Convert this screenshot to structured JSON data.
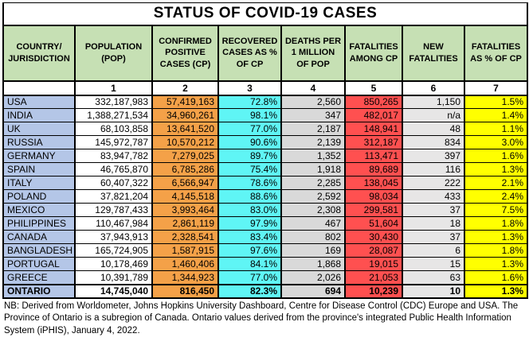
{
  "chart_data": {
    "type": "table",
    "title": "STATUS OF COVID-19 CASES",
    "columns": [
      "COUNTRY/ JURISDICTION",
      "POPULATION (POP)",
      "CONFIRMED POSITIVE CASES (CP)",
      "RECOVERED CASES AS % OF CP",
      "DEATHS PER 1 MILLION OF POP",
      "FATALITIES AMONG CP",
      "NEW FATALITIES",
      "FATALITIES AS % OF CP"
    ],
    "column_numbers": [
      "",
      "1",
      "2",
      "3",
      "4",
      "5",
      "6",
      "7"
    ],
    "rows": [
      [
        "USA",
        "332,187,983",
        "57,419,163",
        "72.8%",
        "2,560",
        "850,265",
        "1,150",
        "1.5%"
      ],
      [
        "INDIA",
        "1,388,271,534",
        "34,960,261",
        "98.1%",
        "347",
        "482,017",
        "n/a",
        "1.4%"
      ],
      [
        "UK",
        "68,103,858",
        "13,641,520",
        "77.0%",
        "2,187",
        "148,941",
        "48",
        "1.1%"
      ],
      [
        "RUSSIA",
        "145,972,787",
        "10,570,212",
        "90.6%",
        "2,139",
        "312,187",
        "834",
        "3.0%"
      ],
      [
        "GERMANY",
        "83,947,782",
        "7,279,025",
        "89.7%",
        "1,352",
        "113,471",
        "397",
        "1.6%"
      ],
      [
        "SPAIN",
        "46,765,870",
        "6,785,286",
        "75.4%",
        "1,918",
        "89,689",
        "116",
        "1.3%"
      ],
      [
        "ITALY",
        "60,407,322",
        "6,566,947",
        "78.6%",
        "2,285",
        "138,045",
        "222",
        "2.1%"
      ],
      [
        "POLAND",
        "37,821,204",
        "4,145,518",
        "88.6%",
        "2,592",
        "98,034",
        "433",
        "2.4%"
      ],
      [
        "MEXICO",
        "129,787,433",
        "3,993,464",
        "83.0%",
        "2,308",
        "299,581",
        "37",
        "7.5%"
      ],
      [
        "PHILIPPINES",
        "110,467,984",
        "2,861,119",
        "97.9%",
        "467",
        "51,604",
        "18",
        "1.8%"
      ],
      [
        "CANADA",
        "37,943,913",
        "2,328,541",
        "83.4%",
        "802",
        "30,430",
        "37",
        "1.3%"
      ],
      [
        "BANGLADESH",
        "165,724,905",
        "1,587,915",
        "97.6%",
        "169",
        "28,087",
        "6",
        "1.8%"
      ],
      [
        "PORTUGAL",
        "10,178,469",
        "1,460,406",
        "84.1%",
        "1,868",
        "19,015",
        "15",
        "1.3%"
      ],
      [
        "GREECE",
        "10,391,789",
        "1,344,923",
        "77.0%",
        "2,026",
        "21,053",
        "63",
        "1.6%"
      ],
      [
        "ONTARIO",
        "14,745,040",
        "816,450",
        "82.3%",
        "694",
        "10,239",
        "10",
        "1.3%"
      ]
    ],
    "emphasized_row": "ONTARIO"
  },
  "footer": {
    "note": "NB: Derived from Worldometer, Johns Hopkins University Dashboard, Centre for Disease Control (CDC) Europe and USA. The Province of Ontario is a subregion of Canada. Ontario values derived from the province's integrated Public Health Information System (iPHIS), January 4, 2022."
  },
  "colors": {
    "title_fill": "#FFFFFF",
    "header_fill": "#C6E0B4",
    "column_fills": [
      "#B4C6E7",
      "#FFFFFF",
      "#F4A148",
      "#5FF5F5",
      "#D9D9D9",
      "#FF5050",
      "#E7E6E6",
      "#FFFF00"
    ],
    "border": "#000000"
  }
}
